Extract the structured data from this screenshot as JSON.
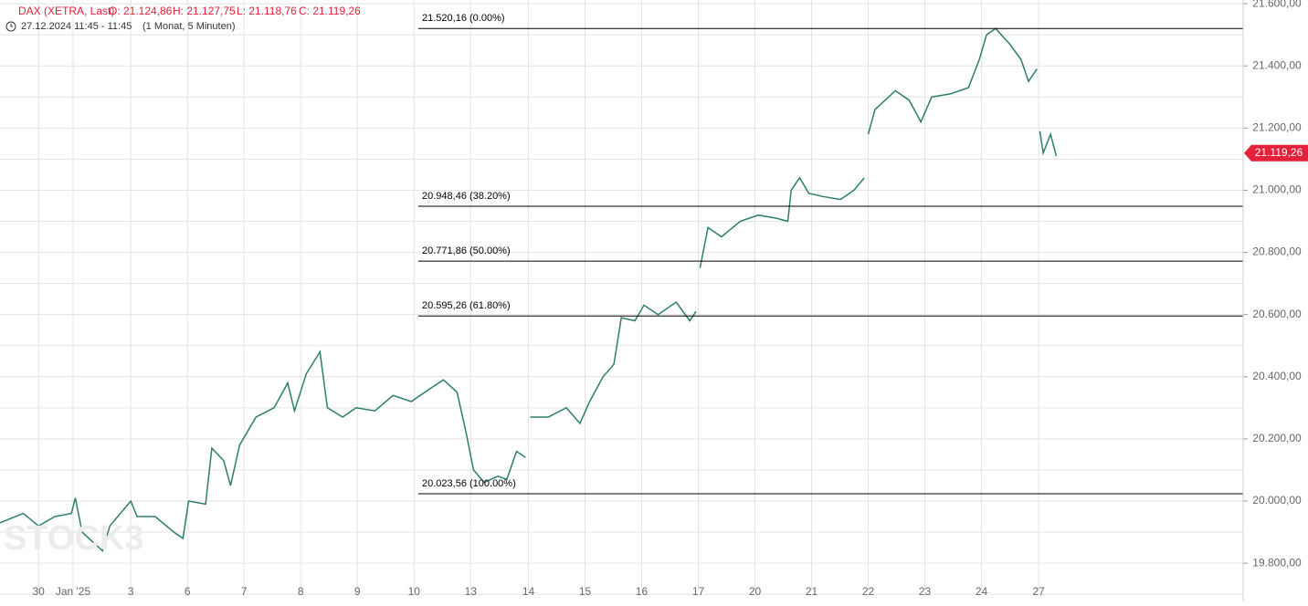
{
  "chart_data": {
    "type": "line",
    "header": {
      "symbol": "DAX (XETRA, Last)",
      "open": "O: 21.124,86",
      "high": "H: 21.127,75",
      "low": "L: 21.118,76",
      "close": "C: 21.119,26",
      "time": "27.12.2024 11:45 - 11:45",
      "period": "(1 Monat, 5 Minuten)"
    },
    "watermark": "STOCK3",
    "xlim": [
      -0.68,
      21.27
    ],
    "xticks": [
      {
        "value": 0,
        "label": "30"
      },
      {
        "value": 0.61,
        "label": "Jan '25"
      },
      {
        "value": 1.63,
        "label": "3"
      },
      {
        "value": 2.63,
        "label": "6"
      },
      {
        "value": 3.63,
        "label": "7"
      },
      {
        "value": 4.63,
        "label": "8"
      },
      {
        "value": 5.63,
        "label": "9"
      },
      {
        "value": 6.63,
        "label": "10"
      },
      {
        "value": 7.63,
        "label": "13"
      },
      {
        "value": 8.65,
        "label": "14"
      },
      {
        "value": 9.65,
        "label": "15"
      },
      {
        "value": 10.65,
        "label": "16"
      },
      {
        "value": 11.65,
        "label": "17"
      },
      {
        "value": 12.65,
        "label": "20"
      },
      {
        "value": 13.65,
        "label": "21"
      },
      {
        "value": 14.65,
        "label": "22"
      },
      {
        "value": 15.65,
        "label": "23"
      },
      {
        "value": 16.65,
        "label": "24"
      },
      {
        "value": 17.66,
        "label": "27"
      }
    ],
    "ylim": [
      19677,
      21612
    ],
    "yticks": [
      {
        "value": 19800,
        "label": "19.800,00"
      },
      {
        "value": 20000,
        "label": "20.000,00"
      },
      {
        "value": 20200,
        "label": "20.200,00"
      },
      {
        "value": 20400,
        "label": "20.400,00"
      },
      {
        "value": 20600,
        "label": "20.600,00"
      },
      {
        "value": 20800,
        "label": "20.800,00"
      },
      {
        "value": 21000,
        "label": "21.000,00"
      },
      {
        "value": 21200,
        "label": "21.200,00"
      },
      {
        "value": 21400,
        "label": "21.400,00"
      },
      {
        "value": 21600,
        "label": "21.600,00"
      }
    ],
    "y_minor_ticks": [
      19700,
      19900,
      20100,
      20300,
      20500,
      20700,
      20900,
      21100,
      21300,
      21500
    ],
    "grid": true,
    "series": [
      {
        "name": "DAX",
        "color": "#2e7d6b",
        "x": [
          -0.68,
          -0.27,
          0,
          0.29,
          0.58,
          0.65,
          0.77,
          1.13,
          1.26,
          1.63,
          1.74,
          2.06,
          2.39,
          2.55,
          2.65,
          2.95,
          3.06,
          3.27,
          3.39,
          3.55,
          3.84,
          4.16,
          4.4,
          4.52,
          4.73,
          4.97,
          5.1,
          5.37,
          5.61,
          5.94,
          6.26,
          6.58,
          6.9,
          7.15,
          7.39,
          7.55,
          7.68,
          7.87,
          8.11,
          8.27,
          8.44,
          8.6,
          8.62,
          8.68,
          9.0,
          9.32,
          9.56,
          9.73,
          9.97,
          10.16,
          10.29,
          10.53,
          10.69,
          10.94,
          11.26,
          11.5,
          11.61,
          11.63,
          11.68,
          11.82,
          12.06,
          12.39,
          12.71,
          13.03,
          13.23,
          13.29,
          13.44,
          13.6,
          13.84,
          14.16,
          14.4,
          14.58,
          14.61,
          14.65,
          14.77,
          15.13,
          15.37,
          15.58,
          15.77,
          16.1,
          16.42,
          16.61,
          16.74,
          16.9,
          17.15,
          17.35,
          17.48,
          17.63,
          17.65,
          17.68,
          17.74,
          17.87,
          17.97
        ],
        "values": [
          19930,
          19960,
          19920,
          19950,
          19960,
          20010,
          19900,
          19840,
          19920,
          20000,
          19950,
          19950,
          19900,
          19880,
          20000,
          19990,
          20170,
          20130,
          20050,
          20180,
          20270,
          20300,
          20380,
          20290,
          20410,
          20480,
          20300,
          20270,
          20300,
          20290,
          20340,
          20320,
          20360,
          20390,
          20350,
          20220,
          20100,
          20060,
          20080,
          20070,
          20160,
          20140,
          null,
          20270,
          20270,
          20300,
          20250,
          20320,
          20400,
          20440,
          20590,
          20580,
          20630,
          20600,
          20640,
          20580,
          20610,
          null,
          20750,
          20880,
          20850,
          20900,
          20920,
          20910,
          20900,
          21000,
          21040,
          20990,
          20980,
          20970,
          21000,
          21040,
          null,
          21180,
          21260,
          21320,
          21290,
          21220,
          21300,
          21310,
          21330,
          21420,
          21500,
          21520,
          21470,
          21420,
          21350,
          21390,
          null,
          21190,
          21120,
          21180,
          21110
        ]
      }
    ],
    "fib_levels": [
      {
        "value": 21520.16,
        "label": "21.520,16 (0.00%)"
      },
      {
        "value": 20948.46,
        "label": "20.948,46 (38.20%)"
      },
      {
        "value": 20771.86,
        "label": "20.771,86 (50.00%)"
      },
      {
        "value": 20595.26,
        "label": "20.595,26 (61.80%)"
      },
      {
        "value": 20023.56,
        "label": "20.023,56 (100.00%)"
      }
    ],
    "last_price": {
      "value": 21119.26,
      "label": "21.119,26",
      "color": "#e5203a"
    }
  }
}
